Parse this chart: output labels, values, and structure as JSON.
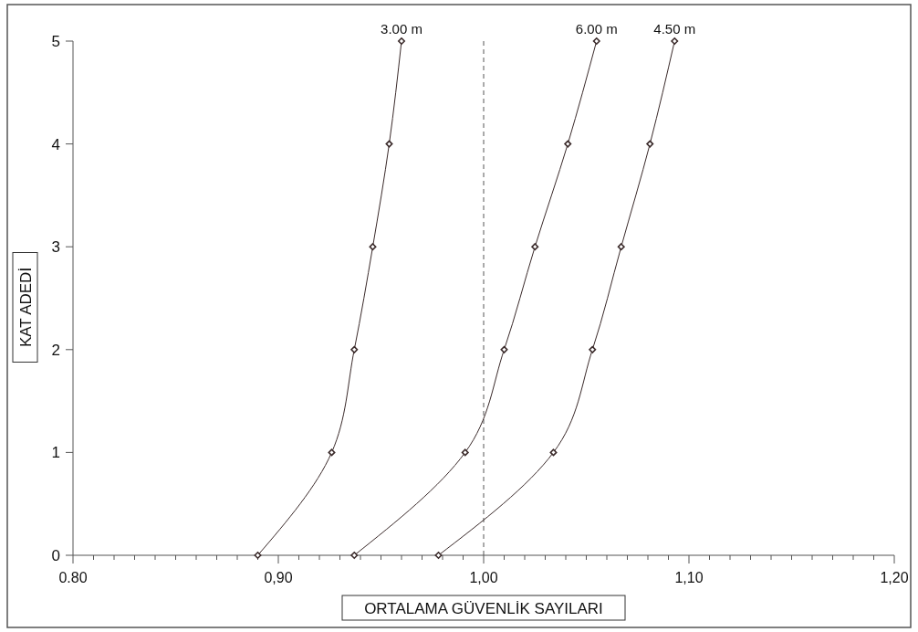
{
  "chart_data": {
    "type": "line",
    "xlabel": "ORTALAMA GÜVENLİK SAYILARI",
    "ylabel": "KAT ADEDİ",
    "xlim": [
      0.8,
      1.2
    ],
    "ylim": [
      0,
      5
    ],
    "yticks": [
      0,
      1,
      2,
      3,
      4,
      5
    ],
    "xticks": [
      {
        "value": 0.8,
        "label": "0.80"
      },
      {
        "value": 0.81,
        "label": null
      },
      {
        "value": 0.82,
        "label": null
      },
      {
        "value": 0.83,
        "label": null
      },
      {
        "value": 0.84,
        "label": null
      },
      {
        "value": 0.85,
        "label": null
      },
      {
        "value": 0.86,
        "label": null
      },
      {
        "value": 0.87,
        "label": null
      },
      {
        "value": 0.88,
        "label": null
      },
      {
        "value": 0.89,
        "label": null
      },
      {
        "value": 0.9,
        "label": "0,90"
      },
      {
        "value": 0.91,
        "label": null
      },
      {
        "value": 0.92,
        "label": null
      },
      {
        "value": 0.93,
        "label": null
      },
      {
        "value": 0.94,
        "label": null
      },
      {
        "value": 0.95,
        "label": null
      },
      {
        "value": 0.96,
        "label": null
      },
      {
        "value": 0.97,
        "label": null
      },
      {
        "value": 0.98,
        "label": null
      },
      {
        "value": 0.99,
        "label": null
      },
      {
        "value": 1.0,
        "label": "1,00"
      },
      {
        "value": 1.01,
        "label": null
      },
      {
        "value": 1.02,
        "label": null
      },
      {
        "value": 1.03,
        "label": null
      },
      {
        "value": 1.04,
        "label": null
      },
      {
        "value": 1.05,
        "label": null
      },
      {
        "value": 1.06,
        "label": null
      },
      {
        "value": 1.07,
        "label": null
      },
      {
        "value": 1.08,
        "label": null
      },
      {
        "value": 1.09,
        "label": null
      },
      {
        "value": 1.1,
        "label": "1,10"
      },
      {
        "value": 1.11,
        "label": null
      },
      {
        "value": 1.12,
        "label": null
      },
      {
        "value": 1.13,
        "label": null
      },
      {
        "value": 1.14,
        "label": null
      },
      {
        "value": 1.15,
        "label": null
      },
      {
        "value": 1.16,
        "label": null
      },
      {
        "value": 1.17,
        "label": null
      },
      {
        "value": 1.18,
        "label": null
      },
      {
        "value": 1.19,
        "label": null
      },
      {
        "value": 1.2,
        "label": "1,20"
      }
    ],
    "marker": "diamond",
    "line_style": "solid",
    "grid": false,
    "ref_lines": [
      {
        "axis": "x",
        "value": 1.0,
        "label": null,
        "line_style": "dashed",
        "color": "#555555"
      }
    ],
    "series": [
      {
        "name": "3.00 m",
        "color": "#3a2a2a",
        "x": [
          0.89,
          0.926,
          0.937,
          0.946,
          0.954,
          0.96
        ],
        "values": [
          0,
          1,
          2,
          3,
          4,
          5
        ]
      },
      {
        "name": "6.00 m",
        "color": "#3a2a2a",
        "x": [
          0.937,
          0.991,
          1.01,
          1.025,
          1.041,
          1.055
        ],
        "values": [
          0,
          1,
          2,
          3,
          4,
          5
        ]
      },
      {
        "name": "4.50 m",
        "color": "#3a2a2a",
        "x": [
          0.978,
          1.034,
          1.053,
          1.067,
          1.081,
          1.093
        ],
        "values": [
          0,
          1,
          2,
          3,
          4,
          5
        ]
      }
    ]
  }
}
